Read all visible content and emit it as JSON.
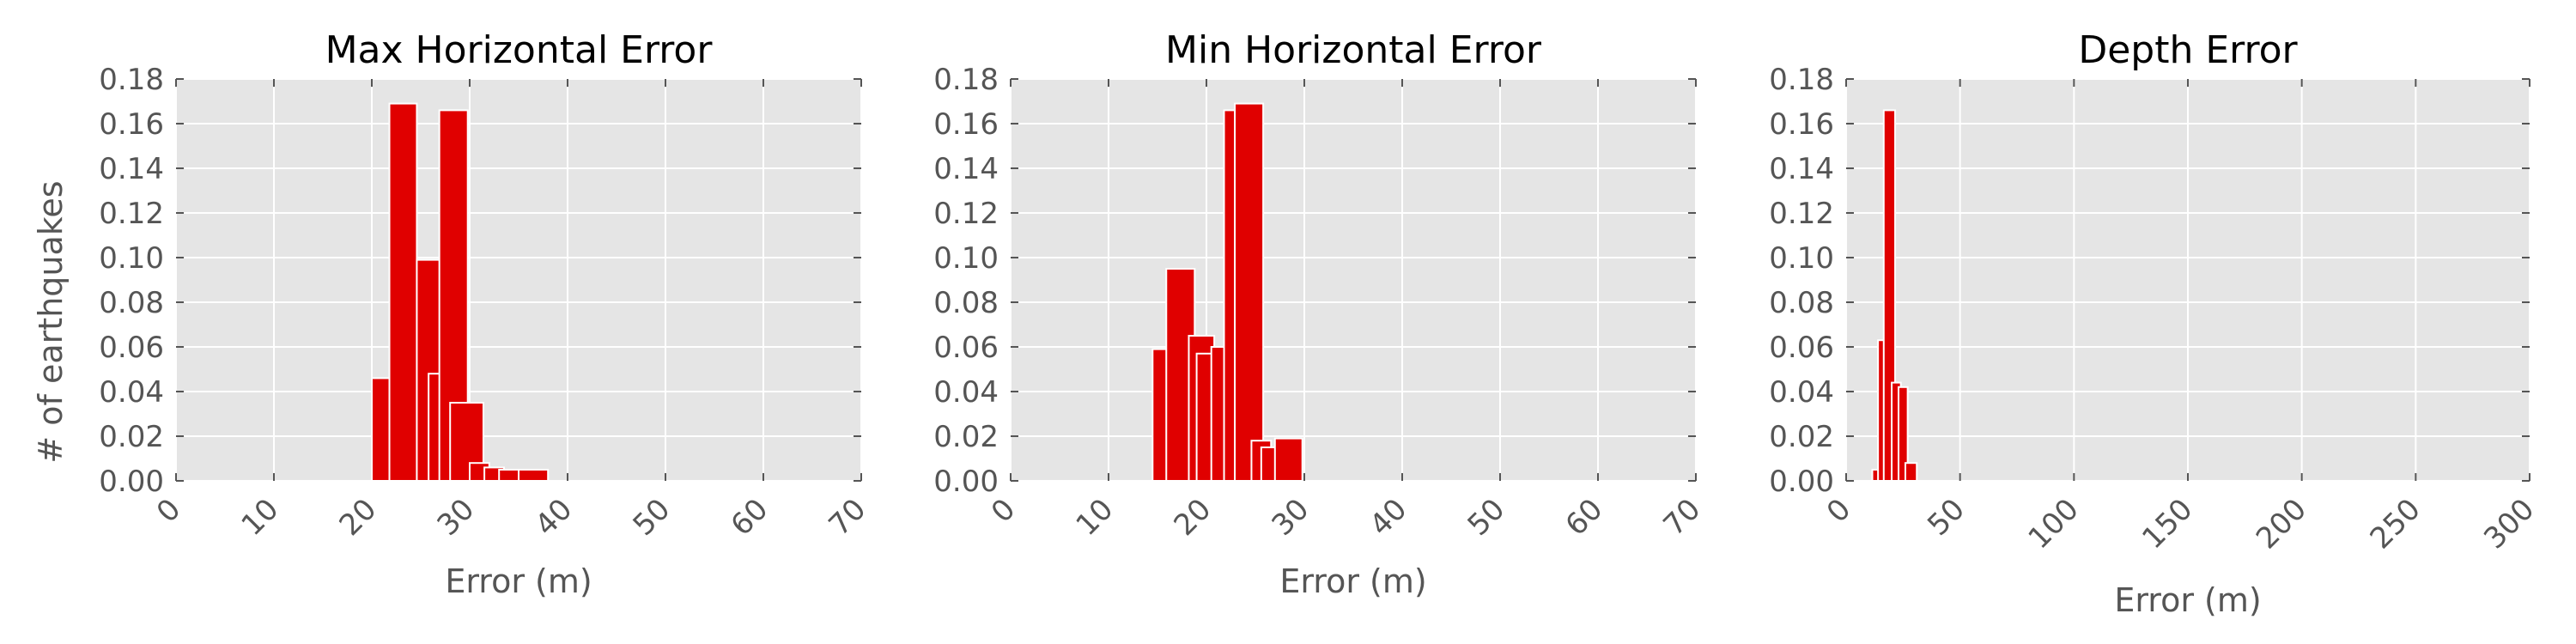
{
  "ylabel": "# of earthquakes",
  "colors": {
    "bar": "#E00000",
    "plot_bg": "#E5E5E5",
    "grid": "#FFFFFF",
    "tick_text": "#555555"
  },
  "chart_data": [
    {
      "type": "bar",
      "title": "Max Horizontal Error",
      "xlabel": "Error (m)",
      "xlim": [
        0,
        70
      ],
      "ylim": [
        0,
        0.18
      ],
      "xticks": [
        "0",
        "10",
        "20",
        "30",
        "40",
        "50",
        "60",
        "70"
      ],
      "yticks": [
        "0.00",
        "0.02",
        "0.04",
        "0.06",
        "0.08",
        "0.10",
        "0.12",
        "0.14",
        "0.16",
        "0.18"
      ],
      "bars": [
        {
          "x0": 20.0,
          "x1": 21.8,
          "value": 0.046
        },
        {
          "x0": 21.8,
          "x1": 24.6,
          "value": 0.169
        },
        {
          "x0": 24.6,
          "x1": 27.4,
          "value": 0.099
        },
        {
          "x0": 25.8,
          "x1": 27.4,
          "value": 0.048
        },
        {
          "x0": 26.9,
          "x1": 29.8,
          "value": 0.166
        },
        {
          "x0": 28.0,
          "x1": 31.4,
          "value": 0.035
        },
        {
          "x0": 30.0,
          "x1": 32.0,
          "value": 0.008
        },
        {
          "x0": 31.5,
          "x1": 33.5,
          "value": 0.006
        },
        {
          "x0": 33.0,
          "x1": 35.0,
          "value": 0.005
        },
        {
          "x0": 35.0,
          "x1": 38.0,
          "value": 0.005
        }
      ]
    },
    {
      "type": "bar",
      "title": "Min Horizontal Error",
      "xlabel": "Error (m)",
      "xlim": [
        0,
        70
      ],
      "ylim": [
        0,
        0.18
      ],
      "xticks": [
        "0",
        "10",
        "20",
        "30",
        "40",
        "50",
        "60",
        "70"
      ],
      "yticks": [
        "0.00",
        "0.02",
        "0.04",
        "0.06",
        "0.08",
        "0.10",
        "0.12",
        "0.14",
        "0.16",
        "0.18"
      ],
      "bars": [
        {
          "x0": 14.5,
          "x1": 16.0,
          "value": 0.059
        },
        {
          "x0": 15.9,
          "x1": 18.8,
          "value": 0.095
        },
        {
          "x0": 18.2,
          "x1": 20.8,
          "value": 0.065
        },
        {
          "x0": 19.0,
          "x1": 20.6,
          "value": 0.057
        },
        {
          "x0": 20.5,
          "x1": 22.0,
          "value": 0.06
        },
        {
          "x0": 21.8,
          "x1": 23.2,
          "value": 0.166
        },
        {
          "x0": 22.9,
          "x1": 25.8,
          "value": 0.169
        },
        {
          "x0": 24.6,
          "x1": 26.6,
          "value": 0.018
        },
        {
          "x0": 25.6,
          "x1": 27.4,
          "value": 0.015
        },
        {
          "x0": 27.0,
          "x1": 29.8,
          "value": 0.019
        }
      ]
    },
    {
      "type": "bar",
      "title": "Depth Error",
      "xlabel": "Error (m)",
      "xlim": [
        0,
        300
      ],
      "ylim": [
        0,
        0.18
      ],
      "xticks": [
        "0",
        "50",
        "100",
        "150",
        "200",
        "250",
        "300"
      ],
      "yticks": [
        "0.00",
        "0.02",
        "0.04",
        "0.06",
        "0.08",
        "0.10",
        "0.12",
        "0.14",
        "0.16",
        "0.18"
      ],
      "bars": [
        {
          "x0": 11.5,
          "x1": 14.5,
          "value": 0.005
        },
        {
          "x0": 14.0,
          "x1": 18.0,
          "value": 0.063
        },
        {
          "x0": 16.5,
          "x1": 21.5,
          "value": 0.166
        },
        {
          "x0": 20.0,
          "x1": 24.0,
          "value": 0.044
        },
        {
          "x0": 23.0,
          "x1": 27.0,
          "value": 0.042
        },
        {
          "x0": 26.0,
          "x1": 31.0,
          "value": 0.008
        }
      ]
    }
  ]
}
